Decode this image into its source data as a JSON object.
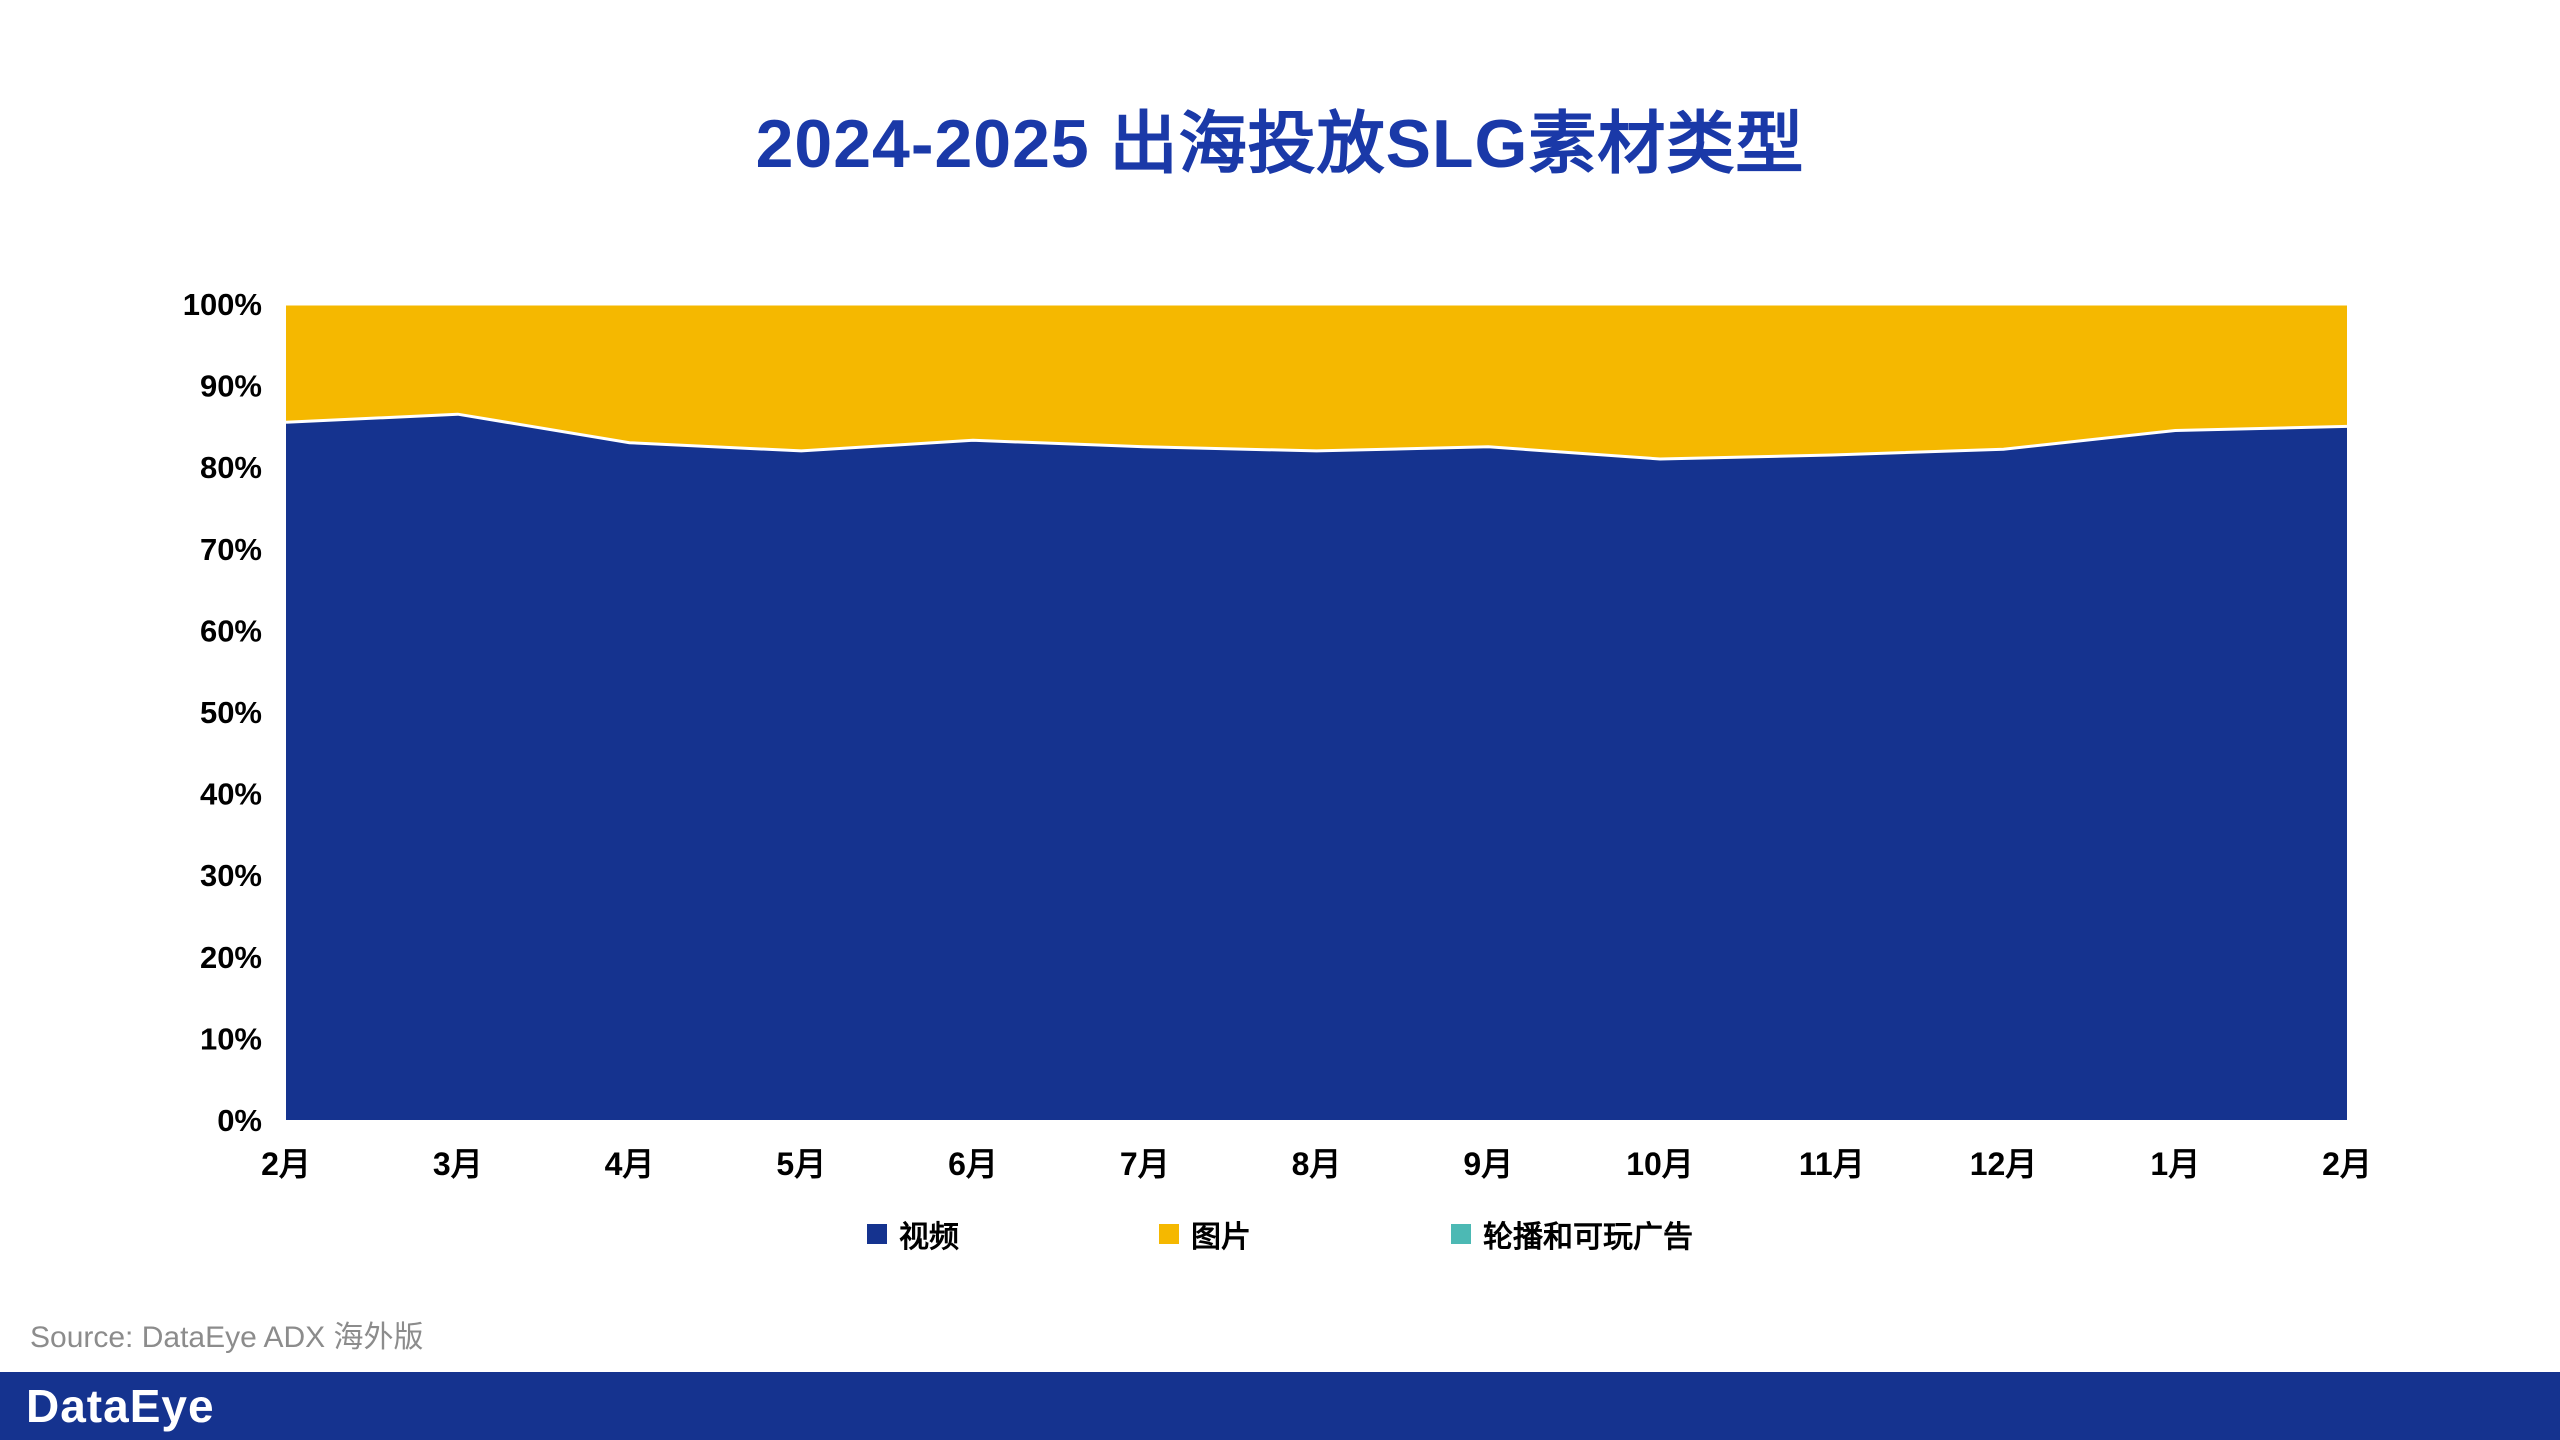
{
  "header": {
    "title": "2024-2025 出海投放SLG素材类型"
  },
  "colors": {
    "title": "#1a39a8",
    "video": "#15338f",
    "image": "#f5b800",
    "carousel": "#4cb9b4",
    "footer_bar": "#15338f",
    "tick_text": "#000000",
    "source_text": "#8c8c8c"
  },
  "chart_data": {
    "type": "area",
    "stacked": true,
    "percent": true,
    "title": "2024-2025 出海投放SLG素材类型",
    "x": [
      "2月",
      "3月",
      "4月",
      "5月",
      "6月",
      "7月",
      "8月",
      "9月",
      "10月",
      "11月",
      "12月",
      "1月",
      "2月"
    ],
    "series": [
      {
        "name": "视频",
        "color": "#15338f",
        "values": [
          85.5,
          86.5,
          83,
          82,
          83.3,
          82.5,
          82,
          82.5,
          81,
          81.5,
          82.2,
          84.5,
          85
        ]
      },
      {
        "name": "图片",
        "color": "#f5b800",
        "values": [
          14.5,
          13.5,
          17,
          18,
          16.7,
          17.5,
          18,
          17.5,
          19,
          18.5,
          17.8,
          15.5,
          15
        ]
      },
      {
        "name": "轮播和可玩广告",
        "color": "#4cb9b4",
        "values": [
          0,
          0,
          0,
          0,
          0,
          0,
          0,
          0,
          0,
          0,
          0,
          0,
          0
        ]
      }
    ],
    "ylim": [
      0,
      100
    ],
    "ytick_step": 10,
    "ytick_suffix": "%",
    "grid": false,
    "legend_position": "bottom"
  },
  "footer": {
    "source": "Source: DataEye ADX 海外版",
    "logo": "DataEye"
  }
}
